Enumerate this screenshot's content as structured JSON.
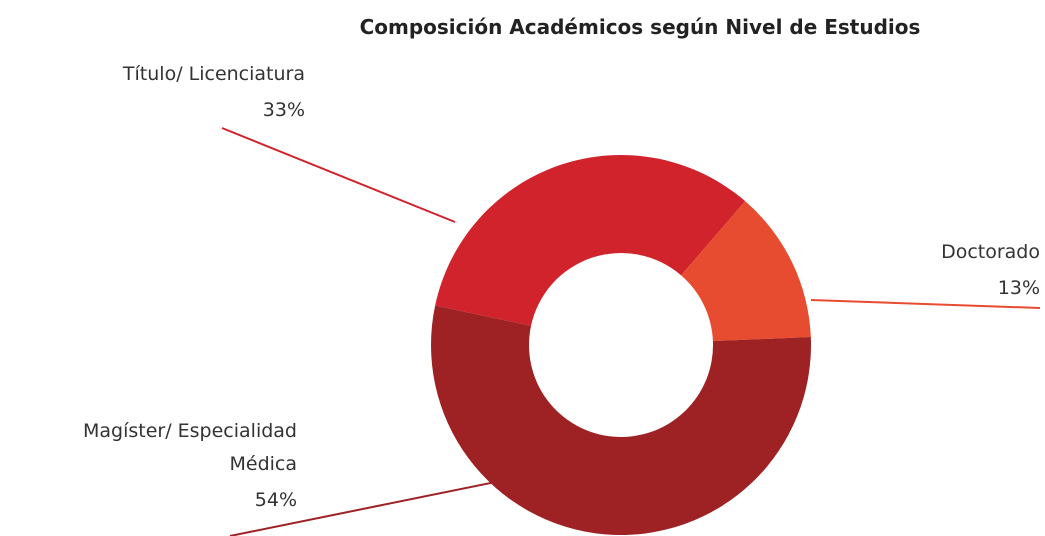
{
  "chart_data": {
    "type": "donut",
    "title": "Composición Académicos según Nivel de Estudios",
    "categories": [
      "Título/ Licenciatura",
      "Doctorado",
      "Magíster/ Especialidad Médica"
    ],
    "values": [
      33,
      13,
      54
    ],
    "value_labels": [
      "33%",
      "13%",
      "54%"
    ],
    "colors": [
      "#d0232c",
      "#e84c30",
      "#9e2124"
    ]
  }
}
